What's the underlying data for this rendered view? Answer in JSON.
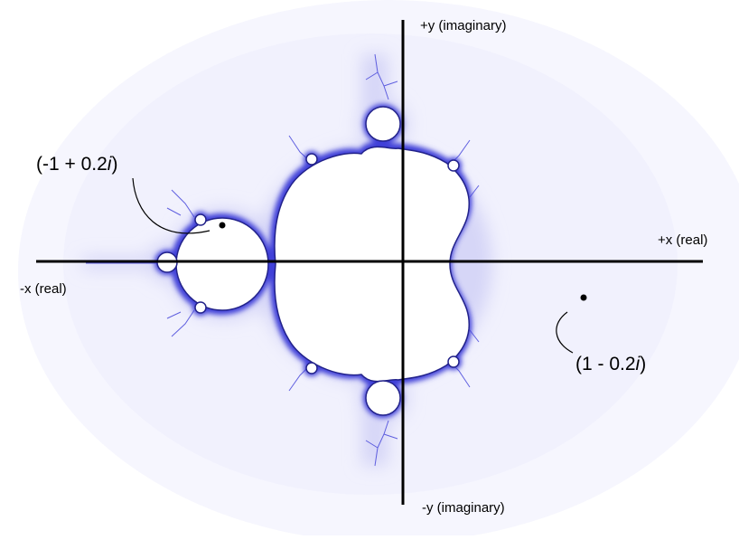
{
  "axes": {
    "positive_y": "+y (imaginary)",
    "negative_y": "-y (imaginary)",
    "positive_x": "+x (real)",
    "negative_x": "-x (real)"
  },
  "points": [
    {
      "label_prefix": "(-1 + 0.2",
      "label_italic": "i",
      "label_suffix": ")",
      "real": -1,
      "imag": 0.2,
      "in_set": true
    },
    {
      "label_prefix": "(1 - 0.2",
      "label_italic": "i",
      "label_suffix": ")",
      "real": 1,
      "imag": -0.2,
      "in_set": false
    }
  ],
  "colors": {
    "background": "#ffffff",
    "halo_outer": "#f3f3fd",
    "halo_inner": "#dcdcf8",
    "boundary": "#3a3ad8",
    "set_fill": "#ffffff",
    "axis": "#000000"
  }
}
